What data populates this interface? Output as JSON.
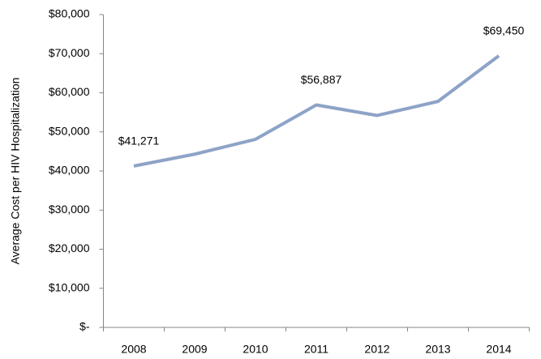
{
  "chart_data": {
    "type": "line",
    "y_label": "Average Cost per HIV Hospitalization",
    "categories": [
      "2008",
      "2009",
      "2010",
      "2011",
      "2012",
      "2013",
      "2014"
    ],
    "series": [
      {
        "color": "#8da3c8",
        "values": [
          41271,
          44300,
          48100,
          56887,
          54200,
          57800,
          69450
        ],
        "value_labels": [
          "$41,271",
          null,
          null,
          "$56,887",
          null,
          null,
          "$69,450"
        ]
      }
    ],
    "ylim": [
      0,
      80000
    ],
    "yticks": [
      {
        "value": 0,
        "label": "$-"
      },
      {
        "value": 10000,
        "label": "$10,000"
      },
      {
        "value": 20000,
        "label": "$20,000"
      },
      {
        "value": 30000,
        "label": "$30,000"
      },
      {
        "value": 40000,
        "label": "$40,000"
      },
      {
        "value": 50000,
        "label": "$50,000"
      },
      {
        "value": 60000,
        "label": "$60,000"
      },
      {
        "value": 70000,
        "label": "$70,000"
      },
      {
        "value": 80000,
        "label": "$80,000"
      }
    ],
    "grid": false
  }
}
